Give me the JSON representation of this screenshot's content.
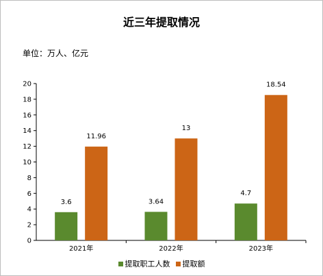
{
  "chart_data": {
    "type": "bar",
    "title": "近三年提取情况",
    "unit_note": "单位：万人、亿元",
    "categories": [
      "2021年",
      "2022年",
      "2023年"
    ],
    "series": [
      {
        "name": "提取职工人数",
        "values": [
          3.6,
          3.64,
          4.7
        ],
        "color": "#5a8a2e"
      },
      {
        "name": "提取额",
        "values": [
          11.96,
          13,
          18.54
        ],
        "color": "#cc6516"
      }
    ],
    "data_labels": [
      [
        "3.6",
        "3.64",
        "4.7"
      ],
      [
        "11.96",
        "13",
        "18.54"
      ]
    ],
    "ylim": [
      0,
      20
    ],
    "yticks": [
      "0",
      "2",
      "4",
      "6",
      "8",
      "10",
      "12",
      "14",
      "16",
      "18",
      "20"
    ],
    "grid": false,
    "legend_position": "bottom"
  }
}
